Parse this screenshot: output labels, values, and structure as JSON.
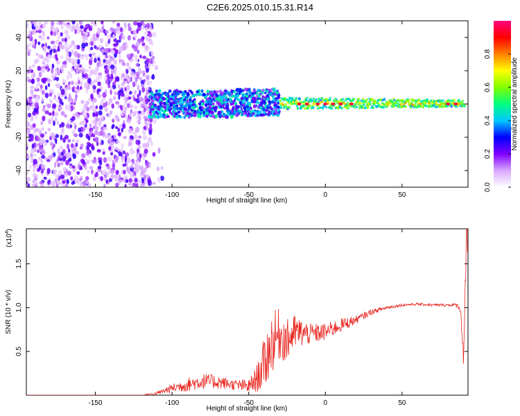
{
  "title": "C2E6.2025.010.15.31.R14",
  "chart_data": [
    {
      "type": "heatmap",
      "xlabel": "Height of straight line (km)",
      "ylabel": "Frequency (Hz)",
      "xlim": [
        -195,
        93
      ],
      "ylim": [
        -50,
        50
      ],
      "xticks": [
        -150,
        -100,
        -50,
        0,
        50
      ],
      "yticks": [
        -40,
        -20,
        0,
        20,
        40
      ],
      "colorbar": {
        "label": "Normalized spectral amplitude",
        "range": [
          0.0,
          1.0
        ],
        "ticks": [
          "0.0",
          "0.2",
          "0.4",
          "0.6",
          "0.8"
        ],
        "colors": [
          "#ffffff",
          "#d9a8ff",
          "#7f00ff",
          "#0000ff",
          "#00c8ff",
          "#00ff80",
          "#80ff00",
          "#ffff00",
          "#ff8000",
          "#ff0000",
          "#ff0080"
        ]
      },
      "regions": [
        {
          "x_range": [
            -195,
            -115
          ],
          "freq_range": [
            -50,
            50
          ],
          "amplitude": "low, broadband noise"
        },
        {
          "x_range": [
            -115,
            -30
          ],
          "freq_range": [
            -7,
            9
          ],
          "amplitude": "0.2-0.5"
        },
        {
          "x_range": [
            -30,
            90
          ],
          "freq_range": [
            -3,
            3
          ],
          "amplitude": "0.4-0.9, peaks near 1.0"
        }
      ]
    },
    {
      "type": "line",
      "xlabel": "Height of straight line (km)",
      "ylabel": "SNR (10 * v/v)",
      "y_multiplier": "(x10^4)",
      "xlim": [
        -195,
        93
      ],
      "ylim": [
        0,
        1.9
      ],
      "xticks": [
        -150,
        -100,
        -50,
        0,
        50
      ],
      "yticks": [
        "0.5",
        "1.0",
        "1.5"
      ],
      "color": "#e8221c",
      "x": [
        -195,
        -150,
        -120,
        -110,
        -100,
        -90,
        -80,
        -70,
        -60,
        -50,
        -45,
        -40,
        -35,
        -30,
        -25,
        -20,
        -10,
        0,
        10,
        20,
        30,
        40,
        50,
        60,
        70,
        80,
        85,
        88,
        90,
        92
      ],
      "values": [
        0.0,
        0.0,
        0.0,
        0.02,
        0.08,
        0.12,
        0.16,
        0.15,
        0.12,
        0.1,
        0.18,
        0.35,
        0.6,
        0.7,
        0.62,
        0.72,
        0.7,
        0.72,
        0.8,
        0.86,
        0.95,
        1.0,
        1.03,
        1.04,
        1.03,
        1.03,
        1.03,
        1.0,
        0.45,
        1.8
      ],
      "noise_amplitude": [
        0.0,
        0.0,
        0.0,
        0.02,
        0.05,
        0.08,
        0.09,
        0.08,
        0.06,
        0.08,
        0.15,
        0.3,
        0.35,
        0.3,
        0.25,
        0.2,
        0.12,
        0.1,
        0.08,
        0.05,
        0.03,
        0.02,
        0.015,
        0.015,
        0.015,
        0.015,
        0.02,
        0.05,
        0.1,
        0.3
      ]
    }
  ]
}
